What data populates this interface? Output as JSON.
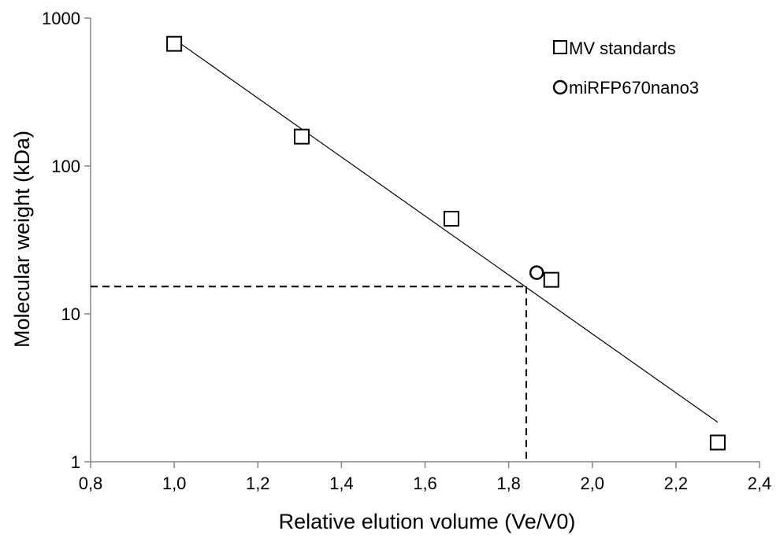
{
  "chart_data": {
    "type": "scatter",
    "title": "",
    "xlabel": "Relative elution volume (Ve/V0)",
    "ylabel": "Molecular weight (kDa)",
    "xlim": [
      0.8,
      2.4
    ],
    "ylim": [
      1,
      1000
    ],
    "y_scale": "log",
    "grid": false,
    "legend_position": "top-right",
    "x_ticks": [
      "0,8",
      "1,0",
      "1,2",
      "1,4",
      "1,6",
      "1,8",
      "2,0",
      "2,2",
      "2,4"
    ],
    "x_tick_values": [
      0.8,
      1.0,
      1.2,
      1.4,
      1.6,
      1.8,
      2.0,
      2.2,
      2.4
    ],
    "y_ticks": [
      "1",
      "10",
      "100",
      "1000"
    ],
    "y_tick_values": [
      1,
      10,
      100,
      1000
    ],
    "series": [
      {
        "name": "MV standards",
        "marker": "square",
        "points": [
          {
            "x": 1.0,
            "y": 670
          },
          {
            "x": 1.305,
            "y": 158
          },
          {
            "x": 1.663,
            "y": 44
          },
          {
            "x": 1.902,
            "y": 17
          },
          {
            "x": 2.3,
            "y": 1.35
          }
        ]
      },
      {
        "name": "miRFP670nano3",
        "marker": "circle",
        "points": [
          {
            "x": 1.867,
            "y": 19
          }
        ]
      }
    ],
    "trendline": {
      "x_start": 1.0,
      "y_start": 720,
      "x_end": 2.3,
      "y_end": 1.85
    },
    "reference_lines": {
      "x": 1.842,
      "y": 15.3
    },
    "colors": {
      "axis": "#868686",
      "marker_stroke": "#000000",
      "marker_fill": "#ffffff",
      "line": "#000000"
    }
  }
}
